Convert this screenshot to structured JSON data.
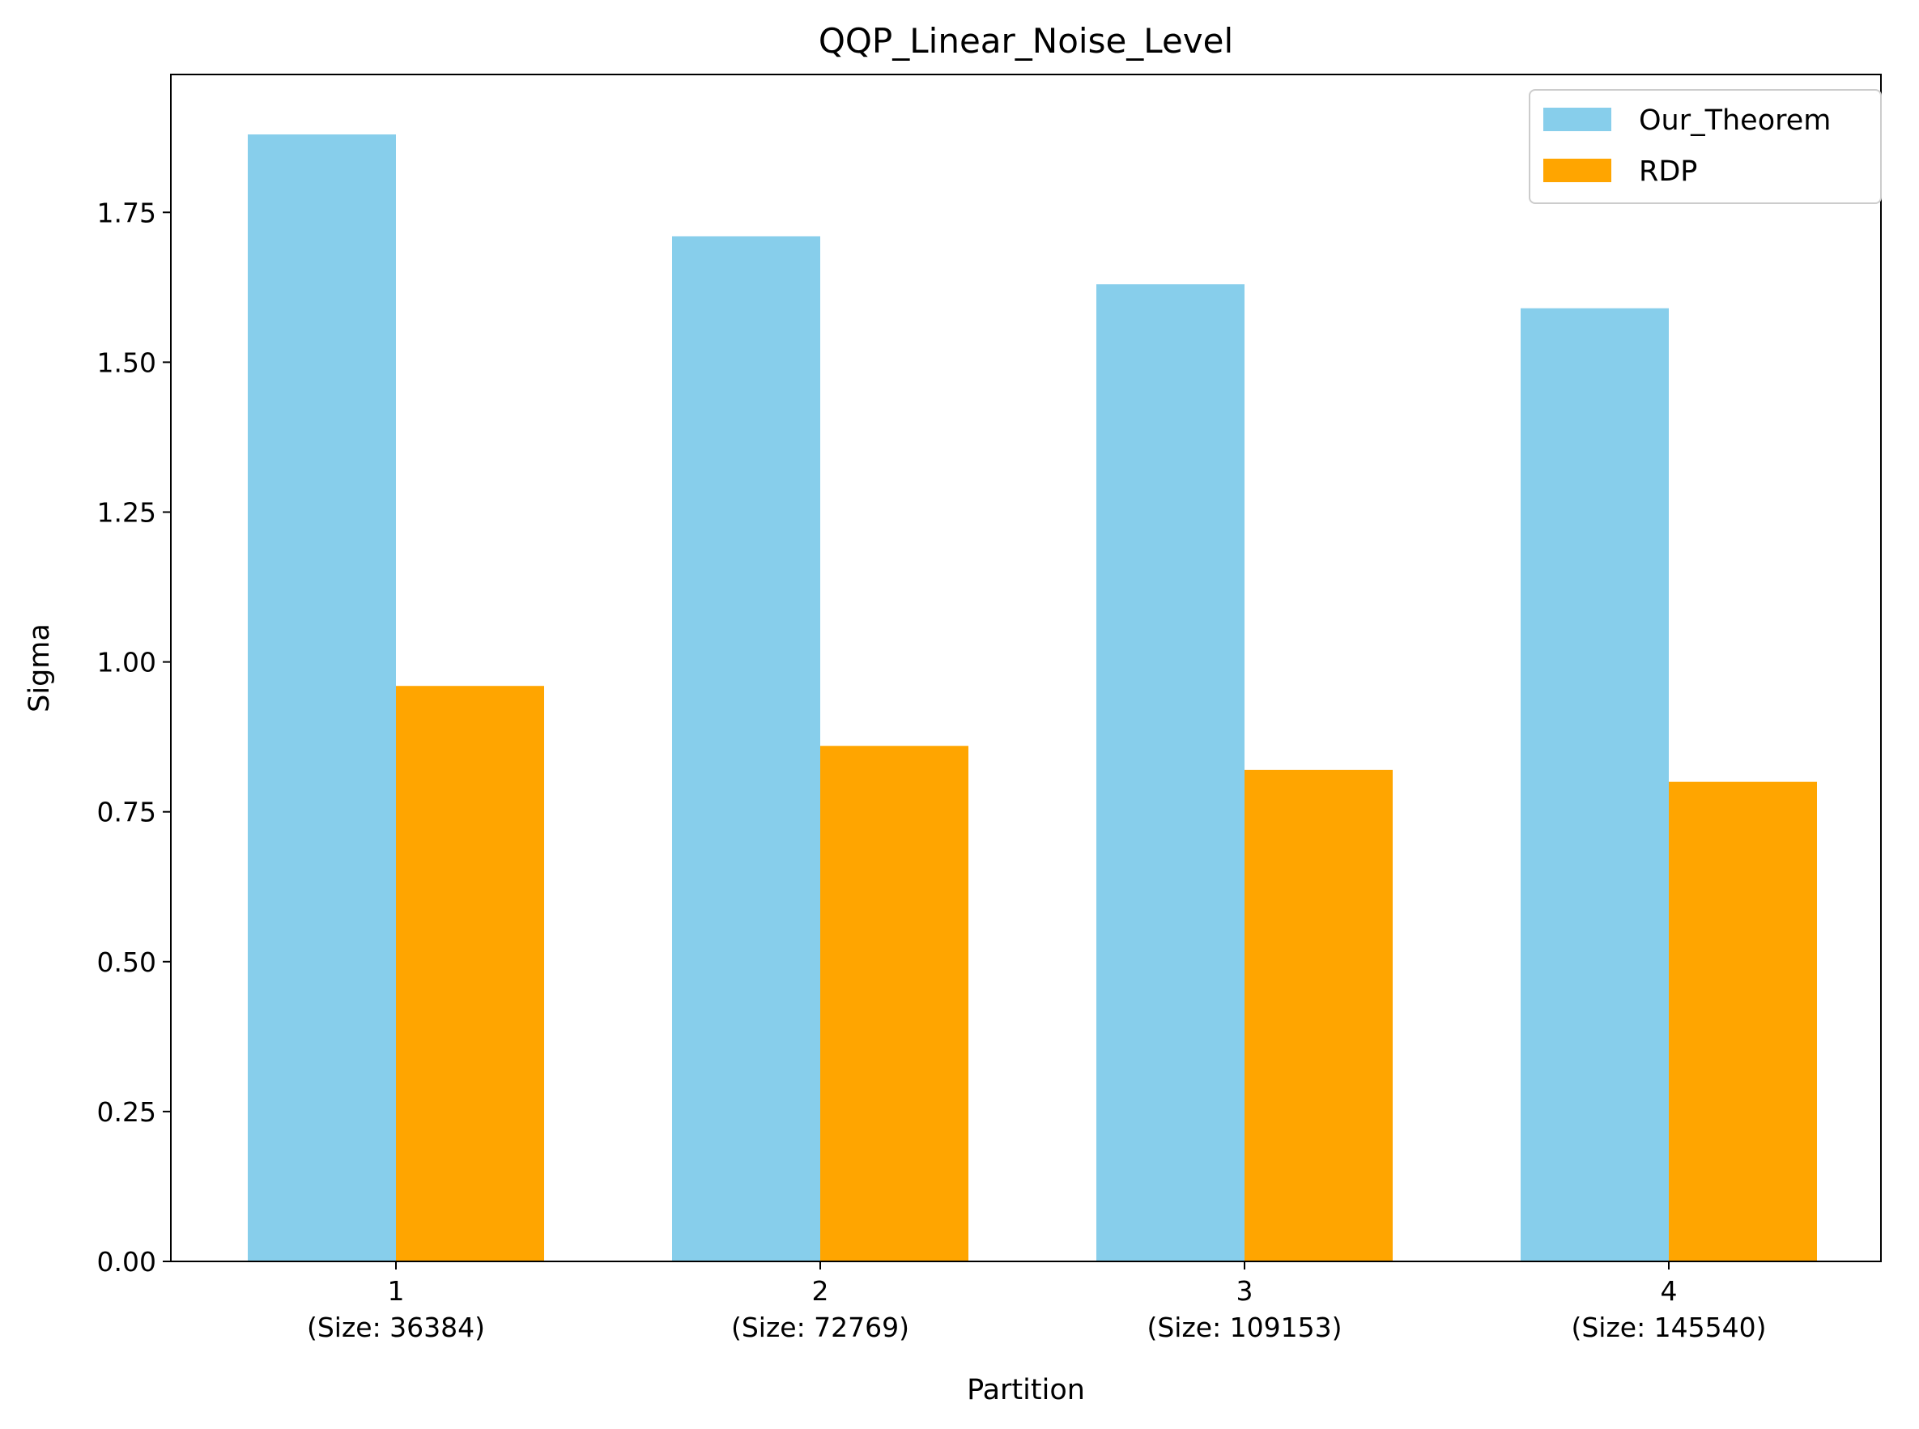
{
  "chart_data": {
    "type": "bar",
    "title": "QQP_Linear_Noise_Level",
    "xlabel": "Partition",
    "ylabel": "Sigma",
    "categories": [
      "1",
      "2",
      "3",
      "4"
    ],
    "category_sublabels": [
      "(Size: 36384)",
      "(Size: 72769)",
      "(Size: 109153)",
      "(Size: 145540)"
    ],
    "series": [
      {
        "name": "Our_Theorem",
        "values": [
          1.88,
          1.71,
          1.63,
          1.59
        ],
        "color": "#87CEEB"
      },
      {
        "name": "RDP",
        "values": [
          0.96,
          0.86,
          0.82,
          0.8
        ],
        "color": "#FFA500"
      }
    ],
    "ylim": [
      0,
      1.98
    ],
    "yticks": [
      0.0,
      0.25,
      0.5,
      0.75,
      1.0,
      1.25,
      1.5,
      1.75
    ],
    "ytick_labels": [
      "0.00",
      "0.25",
      "0.50",
      "0.75",
      "1.00",
      "1.25",
      "1.50",
      "1.75"
    ],
    "grid": false,
    "legend_position": "top-right"
  }
}
